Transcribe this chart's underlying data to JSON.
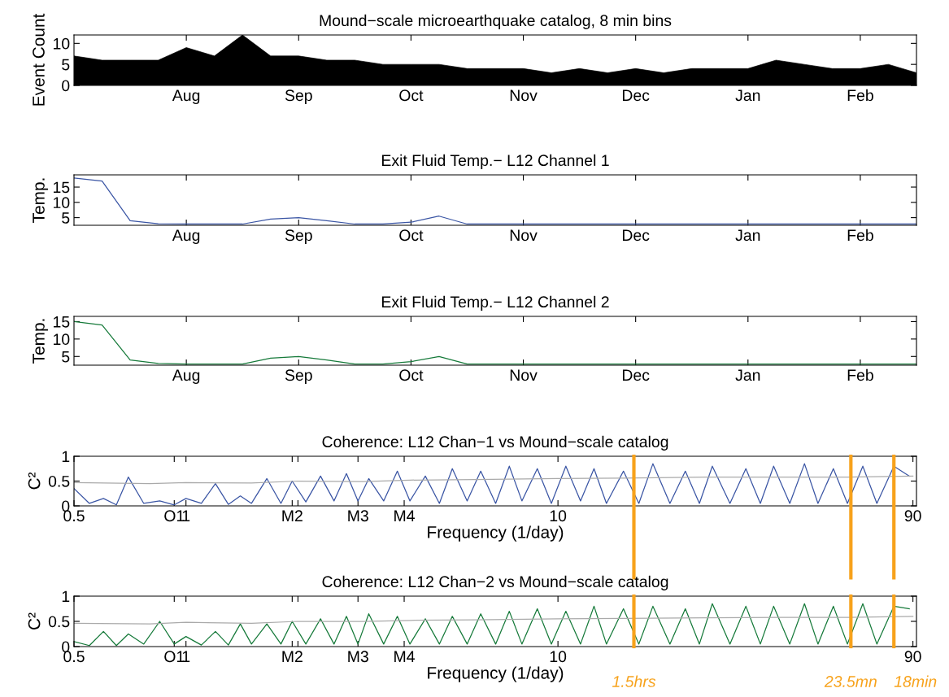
{
  "chart_data": [
    {
      "type": "area",
      "title": "Mound−scale microearthquake catalog, 8 min bins",
      "ylabel": "Event Count",
      "categories": [
        null,
        null,
        null,
        null,
        "Aug",
        null,
        null,
        null,
        "Sep",
        null,
        null,
        null,
        "Oct",
        null,
        null,
        null,
        "Nov",
        null,
        null,
        null,
        "Dec",
        null,
        null,
        null,
        "Jan",
        null,
        null,
        null,
        "Feb",
        null,
        null
      ],
      "series": [
        {
          "color": "#000000",
          "values": [
            7,
            6,
            6,
            6,
            9,
            7,
            12,
            7,
            7,
            6,
            6,
            5,
            5,
            5,
            4,
            4,
            4,
            3,
            4,
            3,
            4,
            3,
            4,
            4,
            4,
            6,
            5,
            4,
            4,
            5,
            3
          ]
        }
      ],
      "ylim": [
        0,
        12
      ],
      "yticks": [
        0,
        5,
        10
      ]
    },
    {
      "type": "line",
      "title": "Exit Fluid Temp.− L12 Channel 1",
      "ylabel": "Temp.",
      "categories": [
        null,
        null,
        null,
        null,
        "Aug",
        null,
        null,
        null,
        "Sep",
        null,
        null,
        null,
        "Oct",
        null,
        null,
        null,
        "Nov",
        null,
        null,
        null,
        "Dec",
        null,
        null,
        null,
        "Jan",
        null,
        null,
        null,
        "Feb",
        null,
        null
      ],
      "series": [
        {
          "color": "#3a55a4",
          "values": [
            18,
            17,
            4,
            3,
            2.9,
            2.9,
            2.9,
            4.5,
            5,
            4,
            2.9,
            2.9,
            3.5,
            5.5,
            2.9,
            2.9,
            2.9,
            2.9,
            2.9,
            2.9,
            2.9,
            2.9,
            2.9,
            2.9,
            2.9,
            2.9,
            2.9,
            2.9,
            2.9,
            2.9,
            2.9
          ]
        }
      ],
      "ylim": [
        2.5,
        19
      ],
      "yticks": [
        5,
        10,
        15
      ]
    },
    {
      "type": "line",
      "title": "Exit Fluid Temp.− L12 Channel 2",
      "ylabel": "Temp.",
      "categories": [
        null,
        null,
        null,
        null,
        "Aug",
        null,
        null,
        null,
        "Sep",
        null,
        null,
        null,
        "Oct",
        null,
        null,
        null,
        "Nov",
        null,
        null,
        null,
        "Dec",
        null,
        null,
        null,
        "Jan",
        null,
        null,
        null,
        "Feb",
        null,
        null
      ],
      "series": [
        {
          "color": "#167a3a",
          "values": [
            15,
            14,
            4,
            3,
            2.8,
            2.8,
            2.8,
            4.5,
            5,
            4,
            2.8,
            2.8,
            3.5,
            5,
            2.8,
            2.8,
            2.8,
            2.8,
            2.8,
            2.8,
            2.8,
            2.8,
            2.8,
            2.8,
            2.8,
            2.8,
            2.8,
            2.8,
            2.8,
            2.8,
            2.8
          ]
        }
      ],
      "ylim": [
        2.5,
        16.5
      ],
      "yticks": [
        5,
        10,
        15
      ]
    },
    {
      "type": "line",
      "title": "Coherence: L12 Chan−1 vs Mound−scale catalog",
      "ylabel": "C²",
      "xlabel": "Frequency (1/day)",
      "log": "x",
      "series": [
        {
          "color": "#3a55a4",
          "x": [
            0.5,
            0.55,
            0.6,
            0.65,
            0.7,
            0.77,
            0.85,
            0.93,
            1.0,
            1.1,
            1.2,
            1.3,
            1.4,
            1.5,
            1.65,
            1.8,
            1.93,
            2.1,
            2.3,
            2.5,
            2.7,
            2.9,
            3.1,
            3.4,
            3.7,
            4,
            4.4,
            4.8,
            5.2,
            5.7,
            6.2,
            6.8,
            7.4,
            8,
            8.8,
            9.6,
            10.5,
            11.5,
            12.5,
            13.5,
            15,
            16.5,
            18,
            20,
            22,
            24,
            26,
            29,
            32,
            35,
            38,
            42,
            46,
            50,
            55,
            60,
            66,
            72,
            80,
            88
          ],
          "values": [
            0.35,
            0.05,
            0.15,
            0.02,
            0.58,
            0.05,
            0.1,
            0.02,
            0.15,
            0.05,
            0.45,
            0.03,
            0.2,
            0.05,
            0.55,
            0.05,
            0.5,
            0.08,
            0.6,
            0.1,
            0.65,
            0.1,
            0.55,
            0.1,
            0.7,
            0.1,
            0.6,
            0.05,
            0.75,
            0.1,
            0.7,
            0.05,
            0.8,
            0.1,
            0.75,
            0.05,
            0.8,
            0.1,
            0.75,
            0.05,
            0.7,
            0.05,
            0.85,
            0.05,
            0.7,
            0.05,
            0.8,
            0.05,
            0.75,
            0.05,
            0.8,
            0.05,
            0.85,
            0.05,
            0.75,
            0.05,
            0.8,
            0.05,
            0.8,
            0.6
          ]
        },
        {
          "color": "#aaaaaa",
          "x": [
            0.5,
            0.8,
            1,
            1.5,
            2,
            3,
            4,
            6,
            10,
            15,
            25,
            40,
            60,
            90
          ],
          "values": [
            0.47,
            0.45,
            0.47,
            0.46,
            0.5,
            0.49,
            0.52,
            0.53,
            0.55,
            0.56,
            0.58,
            0.58,
            0.58,
            0.6
          ]
        }
      ],
      "xlim": [
        0.5,
        92
      ],
      "xticks": [
        0.5,
        {
          "value": 0.93,
          "label": "O1"
        },
        1,
        {
          "value": 1.93,
          "label": "M2"
        },
        {
          "value": 2,
          "label": null
        },
        {
          "value": 2.9,
          "label": "M3"
        },
        {
          "value": 3.86,
          "label": "M4"
        },
        10,
        90
      ],
      "ylim": [
        0,
        1
      ],
      "yticks": [
        0,
        0.5,
        1
      ],
      "ref_lines": [
        {
          "axis": "x",
          "value": 16,
          "color": "#f7a21b"
        },
        {
          "axis": "x",
          "value": 61.3,
          "color": "#f7a21b"
        },
        {
          "axis": "x",
          "value": 80,
          "color": "#f7a21b"
        }
      ]
    },
    {
      "type": "line",
      "title": "Coherence: L12 Chan−2 vs Mound−scale catalog",
      "ylabel": "C²",
      "xlabel": "Frequency (1/day)",
      "log": "x",
      "series": [
        {
          "color": "#167a3a",
          "x": [
            0.5,
            0.55,
            0.6,
            0.65,
            0.7,
            0.77,
            0.85,
            0.93,
            1.0,
            1.1,
            1.2,
            1.3,
            1.4,
            1.5,
            1.65,
            1.8,
            1.93,
            2.1,
            2.3,
            2.5,
            2.7,
            2.9,
            3.1,
            3.4,
            3.7,
            4,
            4.4,
            4.8,
            5.2,
            5.7,
            6.2,
            6.8,
            7.4,
            8,
            8.8,
            9.6,
            10.5,
            11.5,
            12.5,
            13.5,
            15,
            16.5,
            18,
            20,
            22,
            24,
            26,
            29,
            32,
            35,
            38,
            42,
            46,
            50,
            55,
            60,
            66,
            72,
            80,
            88
          ],
          "values": [
            0.1,
            0.02,
            0.3,
            0.02,
            0.25,
            0.05,
            0.5,
            0.05,
            0.2,
            0.03,
            0.3,
            0.03,
            0.45,
            0.05,
            0.45,
            0.05,
            0.5,
            0.05,
            0.55,
            0.05,
            0.6,
            0.05,
            0.65,
            0.05,
            0.6,
            0.05,
            0.55,
            0.05,
            0.6,
            0.05,
            0.65,
            0.05,
            0.7,
            0.05,
            0.75,
            0.05,
            0.7,
            0.05,
            0.8,
            0.05,
            0.75,
            0.05,
            0.8,
            0.05,
            0.75,
            0.05,
            0.85,
            0.05,
            0.8,
            0.05,
            0.8,
            0.05,
            0.85,
            0.05,
            0.8,
            0.05,
            0.85,
            0.05,
            0.8,
            0.75
          ]
        },
        {
          "color": "#aaaaaa",
          "x": [
            0.5,
            0.8,
            1,
            1.5,
            2,
            3,
            4,
            6,
            10,
            15,
            25,
            40,
            60,
            90
          ],
          "values": [
            0.46,
            0.45,
            0.48,
            0.46,
            0.5,
            0.5,
            0.52,
            0.53,
            0.55,
            0.56,
            0.57,
            0.58,
            0.58,
            0.6
          ]
        }
      ],
      "xlim": [
        0.5,
        92
      ],
      "xticks": [
        0.5,
        {
          "value": 0.93,
          "label": "O1"
        },
        1,
        {
          "value": 1.93,
          "label": "M2"
        },
        {
          "value": 2,
          "label": null
        },
        {
          "value": 2.9,
          "label": "M3"
        },
        {
          "value": 3.86,
          "label": "M4"
        },
        10,
        90
      ],
      "ylim": [
        0,
        1
      ],
      "yticks": [
        0,
        0.5,
        1
      ],
      "ref_lines": [
        {
          "axis": "x",
          "value": 16,
          "label": "1.5hrs",
          "color": "#f7a21b"
        },
        {
          "axis": "x",
          "value": 61.3,
          "label": "23.5mn",
          "color": "#f7a21b"
        },
        {
          "axis": "x",
          "value": 80,
          "label": "18min",
          "color": "#f7a21b"
        }
      ]
    }
  ]
}
